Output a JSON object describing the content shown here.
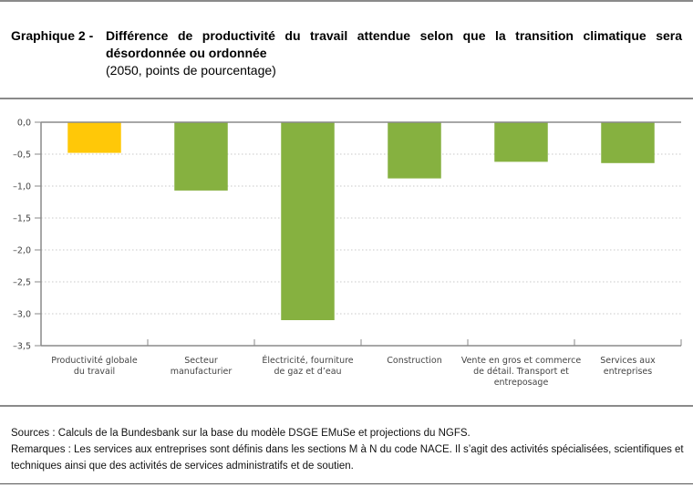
{
  "header": {
    "prefix": "Graphique 2 -",
    "title": "Différence de productivité du travail attendue selon que la transition climatique sera désordonnée ou ordonnée",
    "subtitle": "(2050, points de pourcentage)"
  },
  "colors": {
    "highlight": "#ffc808",
    "bar": "#86b140",
    "axis": "#8a8a8a",
    "grid": "#c8c8c8"
  },
  "chart_data": {
    "type": "bar",
    "title": "Différence de productivité du travail attendue selon que la transition climatique sera désordonnée ou ordonnée",
    "subtitle": "(2050, points de pourcentage)",
    "xlabel": "",
    "ylabel": "",
    "ylim": [
      -3.5,
      0.0
    ],
    "yticks": [
      0.0,
      -0.5,
      -1.0,
      -1.5,
      -2.0,
      -2.5,
      -3.0,
      -3.5
    ],
    "ytick_labels": [
      "0,0",
      "–0,5",
      "–1,0",
      "–1,5",
      "–2,0",
      "–2,5",
      "–3,0",
      "–3,5"
    ],
    "grid": "horizontal dotted",
    "legend": "none",
    "categories": [
      [
        "Productivité globale",
        "du travail"
      ],
      [
        "Secteur",
        "manufacturier"
      ],
      [
        "Électricité, fourniture",
        "de gaz et d’eau"
      ],
      [
        "Construction"
      ],
      [
        "Vente en gros et commerce",
        "de détail. Transport et",
        "entreposage"
      ],
      [
        "Services aux",
        "entreprises"
      ]
    ],
    "values": [
      -0.48,
      -1.07,
      -3.1,
      -0.88,
      -0.62,
      -0.64
    ],
    "bar_colors": [
      "highlight",
      "bar",
      "bar",
      "bar",
      "bar",
      "bar"
    ]
  },
  "notes": {
    "sources": "Sources : Calculs de la Bundesbank sur la base du modèle DSGE EMuSe et projections du NGFS.",
    "remarks": "Remarques : Les services aux entreprises sont définis dans les sections M à N du code NACE. Il s’agit des activités spécialisées, scientifiques et techniques ainsi que des activités de services administratifs et de soutien."
  }
}
